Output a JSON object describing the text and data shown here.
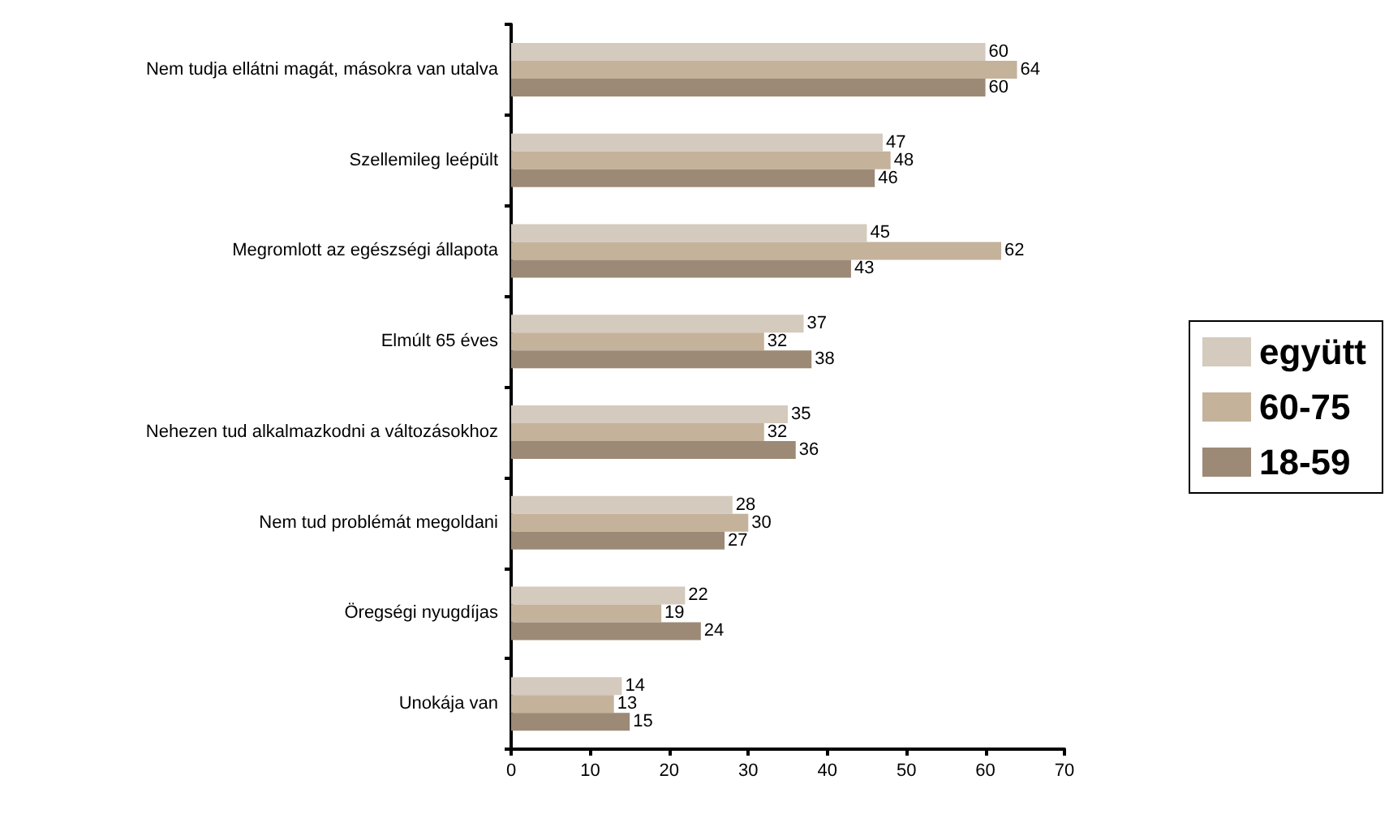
{
  "chart_data": {
    "type": "bar",
    "orientation": "horizontal",
    "categories": [
      "Nem tudja ellátni magát, másokra van utalva",
      "Szellemileg leépült",
      "Megromlott az egészségi állapota",
      "Elmúlt 65 éves",
      "Nehezen tud alkalmazkodni a változásokhoz",
      "Nem tud problémát megoldani",
      "Öregségi nyugdíjas",
      "Unokája van"
    ],
    "series": [
      {
        "name": "együtt",
        "color": "#d4cabd",
        "values": [
          60,
          47,
          45,
          37,
          35,
          28,
          22,
          14
        ]
      },
      {
        "name": "60-75",
        "color": "#c4b29b",
        "values": [
          64,
          48,
          62,
          32,
          32,
          30,
          19,
          13
        ]
      },
      {
        "name": "18-59",
        "color": "#9c8a76",
        "values": [
          60,
          46,
          43,
          38,
          36,
          27,
          24,
          15
        ]
      }
    ],
    "xlim": [
      0,
      70
    ],
    "xticks": [
      0,
      10,
      20,
      30,
      40,
      50,
      60,
      70
    ],
    "data_labels": true,
    "grid": false,
    "legend": "right"
  }
}
